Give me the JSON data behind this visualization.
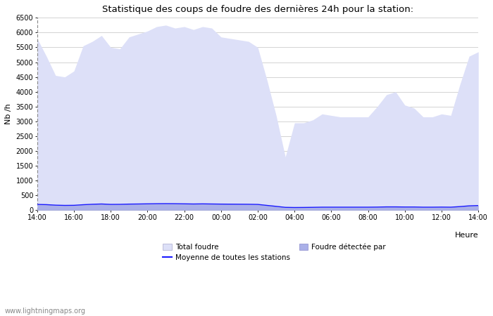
{
  "title": "Statistique des coups de foudre des dernières 24h pour la station:",
  "ylabel": "Nb /h",
  "xlabel": "Heure",
  "ylim": [
    0,
    6500
  ],
  "yticks": [
    0,
    500,
    1000,
    1500,
    2000,
    2500,
    3000,
    3500,
    4000,
    4500,
    5000,
    5500,
    6000,
    6500
  ],
  "xtick_labels": [
    "14:00",
    "16:00",
    "18:00",
    "20:00",
    "22:00",
    "00:00",
    "02:00",
    "04:00",
    "06:00",
    "08:00",
    "10:00",
    "12:00",
    "14:00"
  ],
  "bg_color": "#ffffff",
  "plot_bg_color": "#ffffff",
  "grid_color": "#cccccc",
  "fill_color_total": "#dde0f8",
  "fill_color_detected": "#aab0e8",
  "line_color_moyenne": "#1a1aff",
  "watermark": "www.lightningmaps.org",
  "legend_total": "Total foudre",
  "legend_moyenne": "Moyenne de toutes les stations",
  "legend_detected": "Foudre détectée par",
  "total_foudre": [
    5800,
    5200,
    4550,
    4500,
    4700,
    5550,
    5700,
    5900,
    5500,
    5450,
    5850,
    5950,
    6050,
    6200,
    6250,
    6150,
    6200,
    6100,
    6200,
    6150,
    5850,
    5800,
    5750,
    5700,
    5500,
    4400,
    3200,
    1800,
    2950,
    2950,
    3050,
    3250,
    3200,
    3150,
    3150,
    3150,
    3150,
    3500,
    3900,
    4000,
    3550,
    3450,
    3150,
    3150,
    3250,
    3200,
    4250,
    5200,
    5350
  ],
  "detected_foudre": [
    200,
    195,
    175,
    165,
    168,
    190,
    205,
    215,
    200,
    200,
    210,
    215,
    220,
    225,
    228,
    225,
    220,
    215,
    218,
    215,
    210,
    208,
    205,
    202,
    198,
    165,
    135,
    100,
    95,
    95,
    100,
    105,
    105,
    105,
    105,
    105,
    105,
    108,
    115,
    115,
    110,
    110,
    105,
    105,
    108,
    105,
    125,
    150,
    160
  ],
  "moyenne": [
    195,
    188,
    170,
    162,
    165,
    185,
    200,
    210,
    196,
    198,
    206,
    210,
    215,
    220,
    222,
    220,
    215,
    210,
    214,
    210,
    206,
    204,
    202,
    200,
    195,
    162,
    130,
    96,
    91,
    93,
    97,
    102,
    102,
    102,
    102,
    102,
    102,
    105,
    112,
    112,
    108,
    108,
    102,
    102,
    105,
    102,
    122,
    147,
    157
  ],
  "n_points": 49
}
